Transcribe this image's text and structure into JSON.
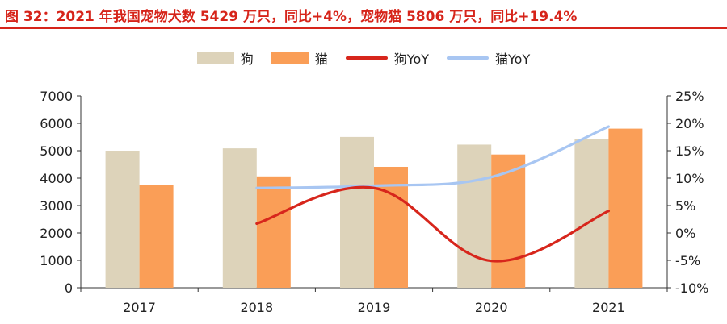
{
  "title": "图 32：2021 年我国宠物犬数 5429 万只，同比+4%，宠物猫 5806 万只，同比+19.4%",
  "colors": {
    "title": "#d6241a",
    "dog_bar": "#ddd3ba",
    "cat_bar": "#fa9e57",
    "dog_yoy": "#d7261c",
    "cat_yoy": "#a8c6f2"
  },
  "chart_data": {
    "type": "bar",
    "categories": [
      "2017",
      "2018",
      "2019",
      "2020",
      "2021"
    ],
    "series": [
      {
        "name": "狗",
        "kind": "bar",
        "axis": "left",
        "values": [
          5000,
          5085,
          5503,
          5222,
          5429
        ]
      },
      {
        "name": "猫",
        "kind": "bar",
        "axis": "left",
        "values": [
          3756,
          4064,
          4412,
          4862,
          5806
        ]
      },
      {
        "name": "狗YoY",
        "kind": "line",
        "axis": "right",
        "values": [
          null,
          1.7,
          8.2,
          -5.1,
          4.0
        ]
      },
      {
        "name": "猫YoY",
        "kind": "line",
        "axis": "right",
        "values": [
          null,
          8.2,
          8.6,
          10.2,
          19.4
        ]
      }
    ],
    "y_left": {
      "min": 0,
      "max": 7000,
      "ticks": [
        "0",
        "1000",
        "2000",
        "3000",
        "4000",
        "5000",
        "6000",
        "7000"
      ]
    },
    "y_right": {
      "min": -10,
      "max": 25,
      "ticks": [
        "-10%",
        "-5%",
        "0%",
        "5%",
        "10%",
        "15%",
        "20%",
        "25%"
      ]
    },
    "legend_position": "top-center",
    "grid": false
  }
}
